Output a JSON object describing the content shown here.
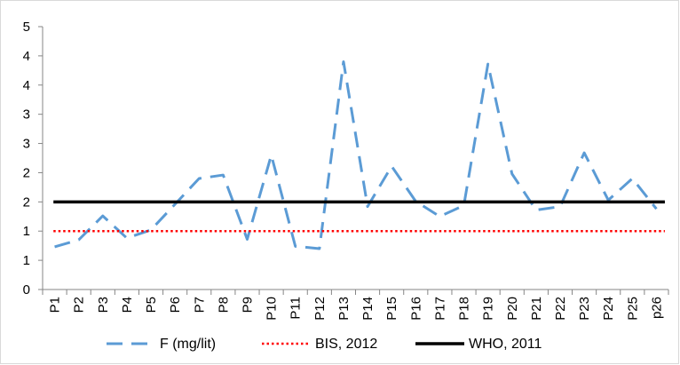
{
  "chart_data": {
    "type": "line",
    "title": "",
    "xlabel": "",
    "ylabel": "",
    "categories": [
      "P1",
      "P2",
      "P3",
      "P4",
      "P5",
      "P6",
      "P7",
      "P8",
      "P9",
      "P10",
      "P11",
      "P12",
      "P13",
      "P14",
      "P15",
      "P16",
      "P17",
      "P18",
      "P19",
      "P20",
      "P21",
      "P22",
      "P23",
      "P24",
      "P25",
      "p26"
    ],
    "y_tick_labels": [
      "0",
      "1",
      "1",
      "2",
      "2",
      "3",
      "3",
      "4",
      "4",
      "5"
    ],
    "ylim": [
      0,
      4.5
    ],
    "y_tick_step": 0.5,
    "grid": false,
    "legend_position": "bottom",
    "series": [
      {
        "name": "F (mg/lit)",
        "values": [
          0.73,
          0.85,
          1.26,
          0.88,
          1.02,
          1.46,
          1.9,
          1.96,
          0.86,
          2.3,
          0.74,
          0.7,
          3.9,
          1.42,
          2.11,
          1.51,
          1.25,
          1.44,
          3.86,
          1.98,
          1.36,
          1.42,
          2.34,
          1.53,
          1.9,
          1.38
        ],
        "color": "#5b9bd5",
        "style": "dashed"
      },
      {
        "name": "BIS, 2012",
        "values": [
          1,
          1,
          1,
          1,
          1,
          1,
          1,
          1,
          1,
          1,
          1,
          1,
          1,
          1,
          1,
          1,
          1,
          1,
          1,
          1,
          1,
          1,
          1,
          1,
          1,
          1
        ],
        "color": "#ff0000",
        "style": "dotted"
      },
      {
        "name": "WHO, 2011",
        "values": [
          1.5,
          1.5,
          1.5,
          1.5,
          1.5,
          1.5,
          1.5,
          1.5,
          1.5,
          1.5,
          1.5,
          1.5,
          1.5,
          1.5,
          1.5,
          1.5,
          1.5,
          1.5,
          1.5,
          1.5,
          1.5,
          1.5,
          1.5,
          1.5,
          1.5,
          1.5
        ],
        "color": "#000000",
        "style": "solid"
      }
    ]
  }
}
